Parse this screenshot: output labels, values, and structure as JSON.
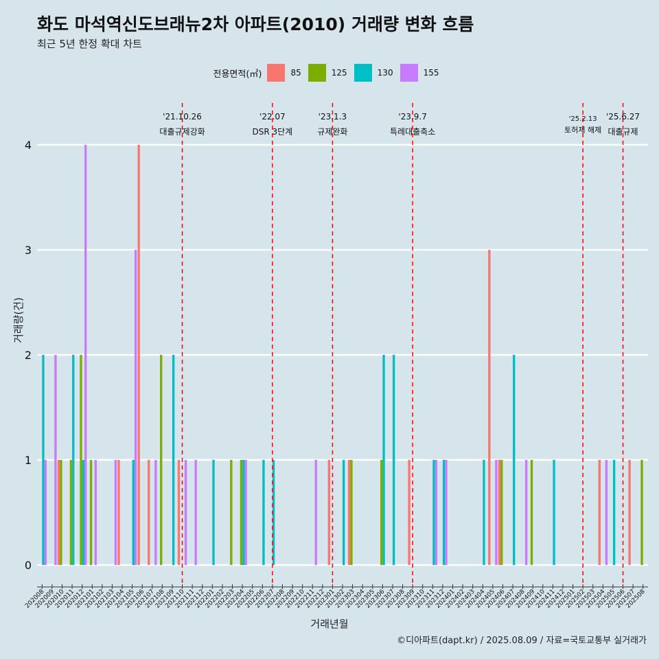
{
  "chart_data": {
    "type": "bar",
    "title": "화도 마석역신도브래뉴2차 아파트(2010) 거래량 변화 흐름",
    "subtitle": "최근 5년 한정 확대 차트",
    "xlabel": "거래년월",
    "ylabel": "거래량(건)",
    "legend_title": "전용면적(㎡)",
    "legend_placement": "top",
    "ylim": [
      0,
      4
    ],
    "yticks": [
      "0",
      "1",
      "2",
      "3",
      "4"
    ],
    "grid": true,
    "categories": [
      "202008",
      "202009",
      "202010",
      "202011",
      "202012",
      "202101",
      "202102",
      "202103",
      "202104",
      "202105",
      "202106",
      "202107",
      "202108",
      "202109",
      "202110",
      "202111",
      "202112",
      "202201",
      "202202",
      "202203",
      "202204",
      "202205",
      "202206",
      "202207",
      "202208",
      "202209",
      "202210",
      "202211",
      "202212",
      "202301",
      "202302",
      "202303",
      "202304",
      "202305",
      "202306",
      "202307",
      "202308",
      "202309",
      "202310",
      "202311",
      "202312",
      "202401",
      "202402",
      "202403",
      "202404",
      "202405",
      "202406",
      "202407",
      "202408",
      "202409",
      "202410",
      "202411",
      "202412",
      "202501",
      "202502",
      "202503",
      "202504",
      "202505",
      "202506",
      "202507",
      "202508"
    ],
    "series": [
      {
        "name": "85",
        "color": "#f8766d",
        "values": [
          0,
          0,
          1,
          0,
          0,
          0,
          0,
          0,
          1,
          0,
          4,
          1,
          0,
          0,
          1,
          0,
          0,
          0,
          0,
          0,
          0,
          0,
          0,
          0,
          0,
          0,
          0,
          0,
          0,
          1,
          0,
          1,
          0,
          0,
          0,
          0,
          0,
          1,
          0,
          0,
          0,
          0,
          0,
          0,
          0,
          3,
          1,
          0,
          0,
          0,
          0,
          0,
          0,
          0,
          0,
          0,
          1,
          0,
          0,
          1,
          0
        ]
      },
      {
        "name": "125",
        "color": "#7cae00",
        "values": [
          0,
          0,
          1,
          1,
          2,
          1,
          0,
          0,
          0,
          0,
          0,
          0,
          2,
          0,
          0,
          0,
          0,
          0,
          0,
          1,
          1,
          0,
          0,
          0,
          0,
          0,
          0,
          0,
          0,
          0,
          0,
          1,
          0,
          0,
          1,
          0,
          0,
          0,
          0,
          0,
          0,
          0,
          0,
          0,
          0,
          0,
          1,
          0,
          0,
          1,
          0,
          0,
          0,
          0,
          0,
          0,
          0,
          0,
          0,
          0,
          1
        ]
      },
      {
        "name": "130",
        "color": "#00bfc4",
        "values": [
          2,
          0,
          0,
          2,
          1,
          0,
          0,
          0,
          0,
          1,
          0,
          0,
          0,
          2,
          0,
          0,
          0,
          1,
          0,
          0,
          1,
          0,
          1,
          1,
          0,
          0,
          0,
          0,
          0,
          0,
          1,
          0,
          0,
          0,
          2,
          2,
          0,
          0,
          0,
          1,
          1,
          0,
          0,
          0,
          1,
          0,
          0,
          2,
          0,
          0,
          0,
          1,
          0,
          0,
          0,
          0,
          0,
          1,
          0,
          0,
          0
        ]
      },
      {
        "name": "155",
        "color": "#c77cff",
        "values": [
          1,
          2,
          0,
          0,
          4,
          1,
          0,
          1,
          0,
          3,
          0,
          1,
          0,
          0,
          1,
          1,
          0,
          0,
          0,
          0,
          1,
          0,
          0,
          0,
          0,
          0,
          0,
          1,
          0,
          0,
          0,
          0,
          0,
          0,
          0,
          0,
          0,
          0,
          0,
          1,
          1,
          0,
          0,
          0,
          0,
          1,
          0,
          0,
          1,
          0,
          0,
          0,
          0,
          0,
          0,
          0,
          1,
          0,
          0,
          0,
          0
        ]
      }
    ],
    "annotations": [
      {
        "category": "202110",
        "date_label": "'21.10.26",
        "event_label": "대출규제강화"
      },
      {
        "category": "202207",
        "date_label": "'22.07",
        "event_label": "DSR 3단계"
      },
      {
        "category": "202301",
        "date_label": "'23.1.3",
        "event_label": "규제완화"
      },
      {
        "category": "202309",
        "date_label": "'23.9.7",
        "event_label": "특례대출축소"
      },
      {
        "category": "202502",
        "date_label": "'25.2.13",
        "event_label": "토허제 해제"
      },
      {
        "category": "202506",
        "date_label": "'25.6.27",
        "event_label": "대출규제"
      }
    ]
  },
  "caption": "©디아파트(dapt.kr) / 2025.08.09 / 자료=국토교통부 실거래가"
}
